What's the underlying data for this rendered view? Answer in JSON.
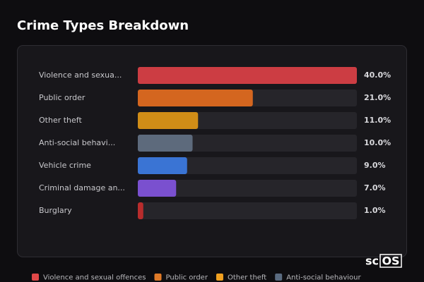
{
  "chart_data": {
    "type": "bar",
    "orientation": "horizontal",
    "title": "Crime Types Breakdown",
    "categories": [
      "Violence and sexua...",
      "Public order",
      "Other theft",
      "Anti-social behavi...",
      "Vehicle crime",
      "Criminal damage an...",
      "Burglary"
    ],
    "values": [
      40,
      21,
      11,
      10,
      9,
      7,
      1
    ],
    "value_labels": [
      "40.0%",
      "21.0%",
      "11.0%",
      "10.0%",
      "9.0%",
      "7.0%",
      "1.0%"
    ],
    "colors": [
      "#cc3d43",
      "#d4661f",
      "#d08d17",
      "#5d6a7c",
      "#3a74d4",
      "#7a50cf",
      "#b82c2c"
    ],
    "xlim": [
      0,
      40
    ],
    "legend": [
      {
        "name": "Violence and sexual offences",
        "color": "#e04848"
      },
      {
        "name": "Public order",
        "color": "#e07a28"
      },
      {
        "name": "Other theft",
        "color": "#f0a020"
      },
      {
        "name": "Anti-social behaviour",
        "color": "#5a6b80"
      }
    ],
    "watermark": {
      "prefix": "sc",
      "boxed": "OS"
    }
  }
}
